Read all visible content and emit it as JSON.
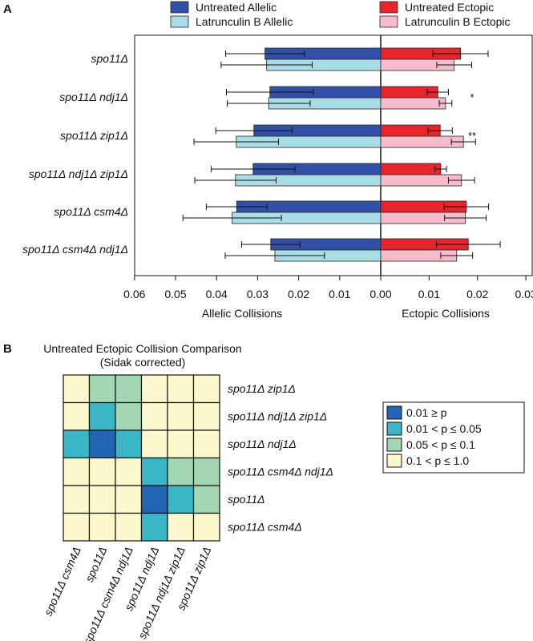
{
  "panels": {
    "a": {
      "letter": "A",
      "chart_data": {
        "type": "bar",
        "orientation": "horizontal",
        "categories": [
          "spo11Δ",
          "spo11Δ ndj1Δ",
          "spo11Δ zip1Δ",
          "spo11Δ ndj1Δ zip1Δ",
          "spo11Δ csm4Δ",
          "spo11Δ csm4Δ ndj1Δ"
        ],
        "significance": [
          "",
          "*",
          "**",
          "",
          "",
          ""
        ],
        "series": [
          {
            "name": "Untreated Allelic",
            "side": "left",
            "color": "#3350a8",
            "values": [
              0.0282,
              0.027,
              0.0309,
              0.0311,
              0.0351,
              0.0268
            ],
            "errors": [
              0.0096,
              0.0106,
              0.0093,
              0.0102,
              0.0074,
              0.0071
            ]
          },
          {
            "name": "Latrunculin B Allelic",
            "side": "left",
            "color": "#a8dde6",
            "values": [
              0.0278,
              0.0273,
              0.0352,
              0.0354,
              0.0362,
              0.0258
            ],
            "errors": [
              0.0111,
              0.0101,
              0.0103,
              0.0099,
              0.012,
              0.0121
            ]
          },
          {
            "name": "Untreated Ectopic",
            "side": "right",
            "color": "#e8252c",
            "values": [
              0.0165,
              0.0118,
              0.0123,
              0.0124,
              0.0177,
              0.0181
            ],
            "errors": [
              0.0057,
              0.0022,
              0.0025,
              0.0012,
              0.0046,
              0.0066
            ]
          },
          {
            "name": "Latrunculin B Ectopic",
            "side": "right",
            "color": "#f6bccb",
            "values": [
              0.0152,
              0.0134,
              0.0171,
              0.0167,
              0.0175,
              0.0157
            ],
            "errors": [
              0.0036,
              0.0013,
              0.0025,
              0.0027,
              0.0043,
              0.0033
            ]
          }
        ],
        "x_ticks": [
          "0.06",
          "0.05",
          "0.04",
          "0.03",
          "0.02",
          "0.01",
          "0.00",
          "0.01",
          "0.02",
          "0.03"
        ],
        "left_xlabel": "Allelic Collisions",
        "right_xlabel": "Ectopic Collisions",
        "left_xlim": [
          0,
          0.06
        ],
        "right_xlim": [
          0,
          0.0305
        ],
        "legend_position": "top"
      }
    },
    "b": {
      "letter": "B",
      "chart_data": {
        "type": "heatmap",
        "title": "Untreated Ectopic Collision Comparison",
        "subtitle": "(Sidak corrected)",
        "row_labels": [
          "spo11Δ zip1Δ",
          "spo11Δ ndj1Δ zip1Δ",
          "spo11Δ ndj1Δ",
          "spo11Δ csm4Δ ndj1Δ",
          "spo11Δ",
          "spo11Δ csm4Δ"
        ],
        "col_labels": [
          "spo11Δ csm4Δ",
          "spo11Δ",
          "spo11Δ csm4Δ ndj1Δ",
          "spo11Δ ndj1Δ",
          "spo11Δ ndj1Δ zip1Δ",
          "spo11Δ zip1Δ"
        ],
        "cells": [
          [
            3,
            2,
            2,
            3,
            3,
            3
          ],
          [
            3,
            1,
            2,
            3,
            3,
            3
          ],
          [
            1,
            0,
            1,
            3,
            3,
            3
          ],
          [
            3,
            3,
            3,
            1,
            2,
            2
          ],
          [
            3,
            3,
            3,
            0,
            1,
            2
          ],
          [
            3,
            3,
            3,
            1,
            3,
            3
          ]
        ],
        "legend": [
          {
            "label": "0.01 ≥ p",
            "color": "#2266b3"
          },
          {
            "label": "0.01 < p ≤ 0.05",
            "color": "#3bb6c6"
          },
          {
            "label": "0.05 < p ≤ 0.1",
            "color": "#a3d6b2"
          },
          {
            "label": "0.1 < p ≤ 1.0",
            "color": "#fcf8cd"
          }
        ]
      }
    }
  }
}
